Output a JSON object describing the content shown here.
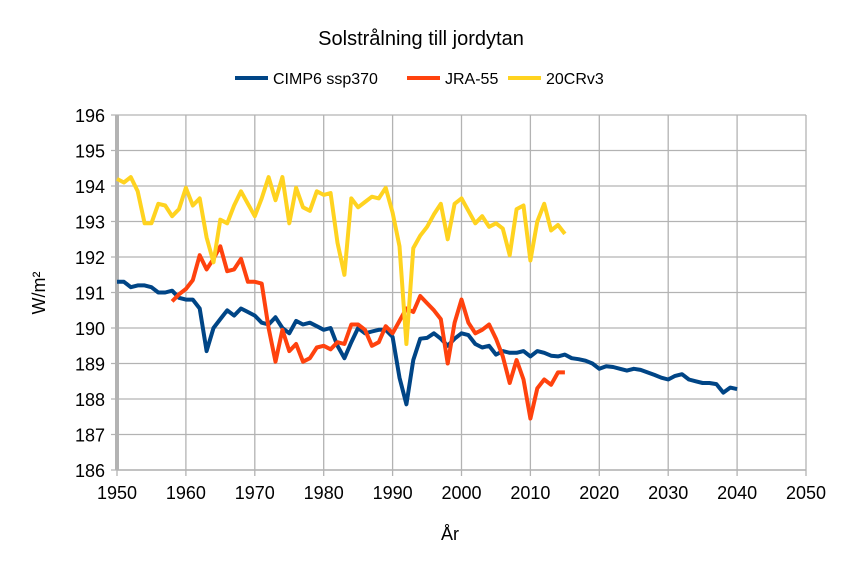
{
  "chart_data": {
    "type": "line",
    "title": "Solstrålning till jordytan",
    "xlabel": "År",
    "ylabel": "W/m²",
    "xlim": [
      1950,
      2050
    ],
    "ylim": [
      186,
      196
    ],
    "xticks": [
      "1950",
      "1960",
      "1970",
      "1980",
      "1990",
      "2000",
      "2010",
      "2020",
      "2030",
      "2040",
      "2050"
    ],
    "yticks": [
      "186",
      "187",
      "188",
      "189",
      "190",
      "191",
      "192",
      "193",
      "194",
      "195",
      "196"
    ],
    "grid": true,
    "legend_position": "top",
    "series": [
      {
        "name": "CIMP6 ssp370",
        "color": "#004586",
        "start_year": 1950,
        "values": [
          191.3,
          191.3,
          191.15,
          191.2,
          191.2,
          191.15,
          191.0,
          191.0,
          191.05,
          190.85,
          190.8,
          190.8,
          190.55,
          189.35,
          190.0,
          190.25,
          190.5,
          190.35,
          190.55,
          190.45,
          190.35,
          190.15,
          190.1,
          190.3,
          190.0,
          189.85,
          190.2,
          190.1,
          190.15,
          190.05,
          189.95,
          190.0,
          189.5,
          189.15,
          189.6,
          190.0,
          189.85,
          189.9,
          189.95,
          189.95,
          189.75,
          188.6,
          187.85,
          189.1,
          189.7,
          189.72,
          189.85,
          189.7,
          189.5,
          189.7,
          189.85,
          189.8,
          189.55,
          189.45,
          189.5,
          189.25,
          189.35,
          189.3,
          189.3,
          189.35,
          189.2,
          189.35,
          189.3,
          189.22,
          189.2,
          189.25,
          189.15,
          189.12,
          189.08,
          189.0,
          188.85,
          188.92,
          188.9,
          188.85,
          188.8,
          188.85,
          188.82,
          188.75,
          188.68,
          188.6,
          188.55,
          188.65,
          188.7,
          188.55,
          188.5,
          188.45,
          188.45,
          188.42,
          188.18,
          188.32,
          188.28
        ]
      },
      {
        "name": "JRA-55",
        "color": "#ff420e",
        "start_year": 1958,
        "values": [
          190.75,
          190.95,
          191.1,
          191.35,
          192.05,
          191.65,
          191.95,
          192.3,
          191.6,
          191.65,
          191.95,
          191.3,
          191.3,
          191.25,
          190.0,
          189.05,
          189.95,
          189.35,
          189.55,
          189.05,
          189.15,
          189.45,
          189.5,
          189.4,
          189.6,
          189.55,
          190.1,
          190.1,
          189.95,
          189.5,
          189.6,
          190.05,
          189.85,
          190.2,
          190.55,
          190.45,
          190.9,
          190.7,
          190.5,
          190.25,
          189.0,
          190.15,
          190.8,
          190.15,
          189.85,
          189.95,
          190.1,
          189.7,
          189.2,
          188.45,
          189.1,
          188.55,
          187.45,
          188.3,
          188.55,
          188.4,
          188.75,
          188.75
        ]
      },
      {
        "name": "20CRv3",
        "color": "#ffd320",
        "start_year": 1950,
        "values": [
          194.2,
          194.1,
          194.25,
          193.85,
          192.95,
          192.95,
          193.5,
          193.45,
          193.15,
          193.35,
          193.95,
          193.45,
          193.65,
          192.55,
          191.85,
          193.05,
          192.95,
          193.45,
          193.85,
          193.5,
          193.15,
          193.65,
          194.25,
          193.6,
          194.25,
          192.95,
          193.95,
          193.4,
          193.3,
          193.85,
          193.75,
          193.8,
          192.4,
          191.5,
          193.65,
          193.4,
          193.55,
          193.7,
          193.65,
          193.95,
          193.25,
          192.3,
          189.55,
          192.25,
          192.6,
          192.85,
          193.2,
          193.5,
          192.5,
          193.5,
          193.65,
          193.3,
          192.95,
          193.15,
          192.85,
          192.95,
          192.8,
          192.05,
          193.35,
          193.45,
          191.9,
          193.0,
          193.5,
          192.75,
          192.9,
          192.65
        ]
      }
    ]
  }
}
